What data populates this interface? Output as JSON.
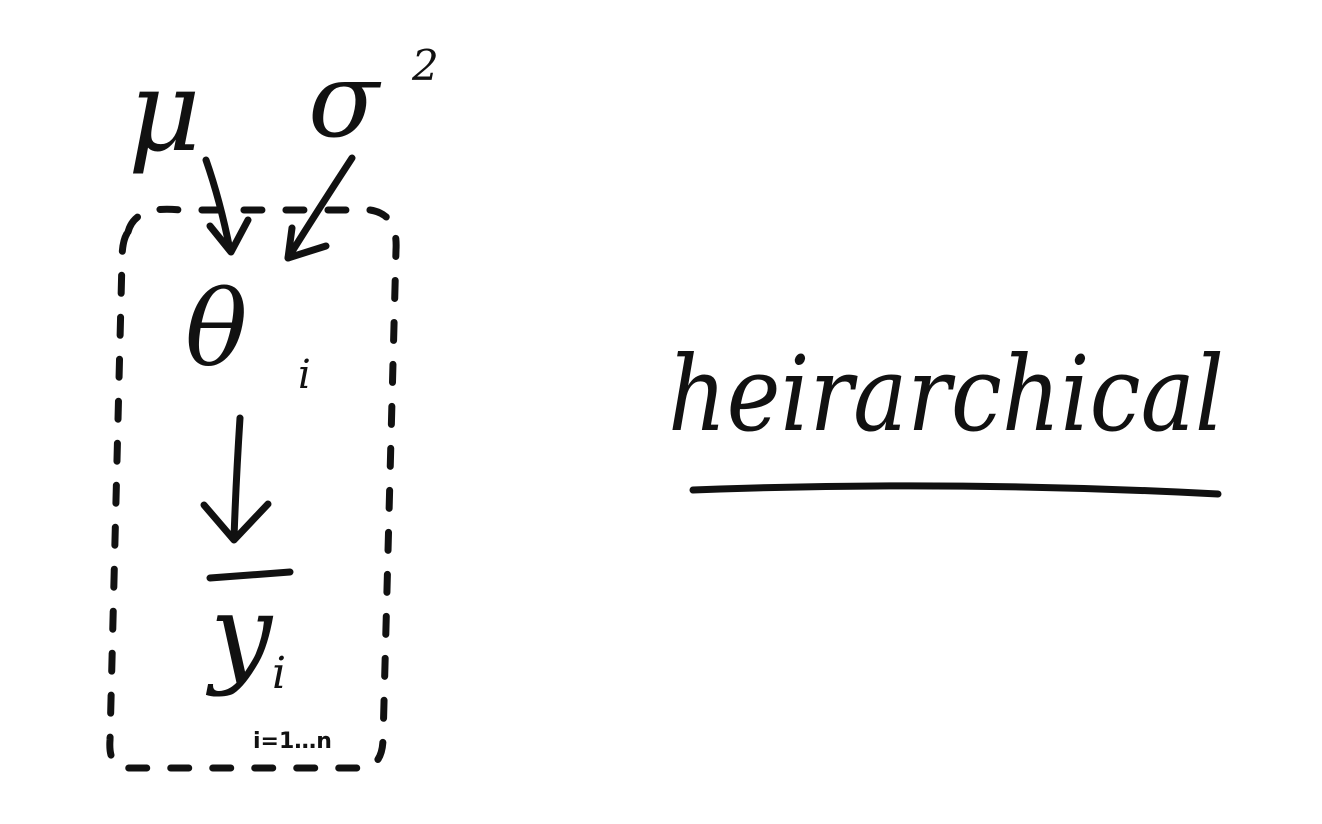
{
  "nodes": {
    "mu": "μ",
    "sigma": "σ",
    "sigma_power": "2",
    "theta": "θ",
    "theta_subscript": "i",
    "y": "y",
    "y_subscript": "i"
  },
  "plate": {
    "index_label": "i=1…n"
  },
  "caption": {
    "word": "heirarchical"
  }
}
